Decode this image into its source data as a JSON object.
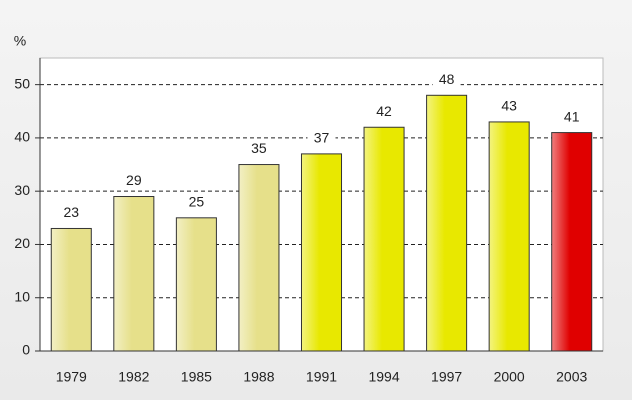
{
  "chart_data": {
    "type": "bar",
    "y_label": "%",
    "categories": [
      "1979",
      "1982",
      "1985",
      "1988",
      "1991",
      "1994",
      "1997",
      "2000",
      "2003"
    ],
    "values": [
      23,
      29,
      25,
      35,
      37,
      42,
      48,
      43,
      41
    ],
    "colors": [
      "#e6e08a",
      "#e6e08a",
      "#e6e08a",
      "#e6e08a",
      "#e8e800",
      "#e8e800",
      "#e8e800",
      "#e8e800",
      "#e00000"
    ],
    "ylim": [
      0,
      55
    ],
    "yticks": [
      0,
      10,
      20,
      30,
      40,
      50
    ],
    "grid": true
  }
}
